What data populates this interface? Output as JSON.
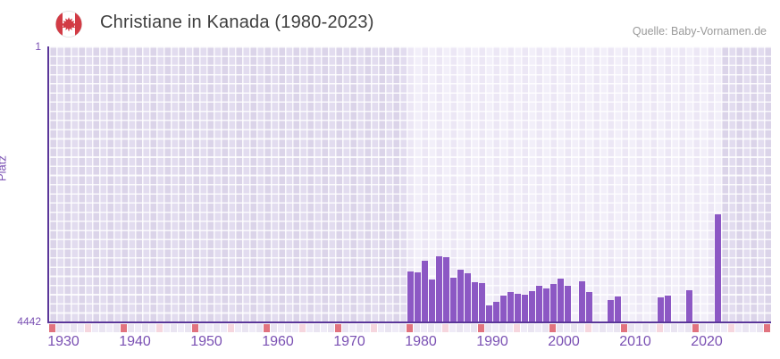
{
  "header": {
    "title": "Christiane in Kanada (1980-2023)",
    "source": "Quelle: Baby-Vornamen.de",
    "flag_icon": "canada-flag-icon"
  },
  "axes": {
    "y_title": "Platz",
    "y_top_tick": "1",
    "y_bottom_tick": "4442",
    "x_tick_labels": [
      "1930",
      "1940",
      "1950",
      "1960",
      "1970",
      "1980",
      "1990",
      "2000",
      "2010",
      "2020"
    ]
  },
  "colors": {
    "bar": "#8c58c4",
    "axis_line": "#5a3699",
    "tick_label": "#7a50b3",
    "band_background": "#efeaf7",
    "outer_background": "#ded8ec",
    "decade_marker_cell": "#e1737f",
    "half_decade_marker_cell": "#f6d6de",
    "year_cell_even": "#efebf7",
    "year_cell_odd": "#e9e4f1",
    "flag_red": "#d23b45",
    "title_text": "#3e3e3e",
    "source_text": "#9a9a9a"
  },
  "chart_data": {
    "type": "bar",
    "title": "Christiane in Kanada (1980-2023)",
    "xlabel": "",
    "ylabel": "Platz",
    "y_axis_inverted": true,
    "ylim": [
      1,
      4442
    ],
    "x_range": [
      1930,
      2030
    ],
    "x_ticks": [
      1930,
      1940,
      1950,
      1960,
      1970,
      1980,
      1990,
      2000,
      2010,
      2020
    ],
    "highlight_band_years": [
      1980,
      2023
    ],
    "grid": true,
    "legend": "none",
    "series_name": "Platz (Rang des Vornamens Christiane)",
    "series": [
      {
        "year": 1980,
        "rank": 3635
      },
      {
        "year": 1981,
        "rank": 3649
      },
      {
        "year": 1982,
        "rank": 3462
      },
      {
        "year": 1983,
        "rank": 3765
      },
      {
        "year": 1984,
        "rank": 3390
      },
      {
        "year": 1985,
        "rank": 3404
      },
      {
        "year": 1986,
        "rank": 3736
      },
      {
        "year": 1987,
        "rank": 3606
      },
      {
        "year": 1988,
        "rank": 3664
      },
      {
        "year": 1989,
        "rank": 3808
      },
      {
        "year": 1990,
        "rank": 3822
      },
      {
        "year": 1991,
        "rank": 4183
      },
      {
        "year": 1992,
        "rank": 4125
      },
      {
        "year": 1993,
        "rank": 4024
      },
      {
        "year": 1994,
        "rank": 3966
      },
      {
        "year": 1995,
        "rank": 3995
      },
      {
        "year": 1996,
        "rank": 4010
      },
      {
        "year": 1997,
        "rank": 3952
      },
      {
        "year": 1998,
        "rank": 3865
      },
      {
        "year": 1999,
        "rank": 3909
      },
      {
        "year": 2000,
        "rank": 3837
      },
      {
        "year": 2001,
        "rank": 3750
      },
      {
        "year": 2002,
        "rank": 3865
      },
      {
        "year": 2004,
        "rank": 3793
      },
      {
        "year": 2005,
        "rank": 3966
      },
      {
        "year": 2008,
        "rank": 4096
      },
      {
        "year": 2009,
        "rank": 4039
      },
      {
        "year": 2015,
        "rank": 4053
      },
      {
        "year": 2016,
        "rank": 4024
      },
      {
        "year": 2019,
        "rank": 3938
      },
      {
        "year": 2023,
        "rank": 2712
      }
    ]
  }
}
